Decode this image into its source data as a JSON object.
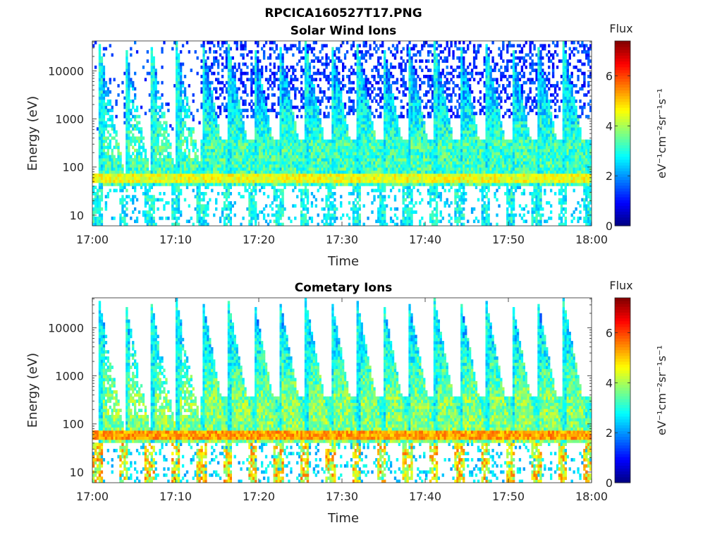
{
  "figure_title": "RPCICA160527T17.PNG",
  "chart_data": [
    {
      "type": "heatmap",
      "title": "Solar Wind Ions",
      "xlabel": "Time",
      "ylabel": "Energy (eV)",
      "x_ticks": [
        "17:00",
        "17:10",
        "17:20",
        "17:30",
        "17:40",
        "17:50",
        "18:00"
      ],
      "xlim": [
        "17:00",
        "18:00"
      ],
      "y_scale": "log",
      "y_ticks": [
        10,
        100,
        1000,
        10000
      ],
      "ylim": [
        6,
        42000
      ],
      "colorbar": {
        "label": "Flux",
        "units": "eV⁻¹cm⁻²sr⁻¹s⁻¹",
        "ticks": [
          0,
          2,
          4,
          6
        ],
        "range": [
          0,
          7.4
        ],
        "colormap": "jet"
      },
      "sweep_start_minutes": [
        0.7,
        3.8,
        6.9,
        10.0,
        13.1,
        16.2,
        19.3,
        22.4,
        25.5,
        28.6,
        31.7,
        34.8,
        37.9,
        41.0,
        44.1,
        47.2,
        50.3,
        53.4,
        56.5
      ],
      "peak_energy_eV": 60,
      "peak_flux": 4.8,
      "description_ranges": {
        "background_flux_high_energy": [
          1,
          2
        ],
        "sweep_flux": [
          2.5,
          4
        ]
      }
    },
    {
      "type": "heatmap",
      "title": "Cometary Ions",
      "xlabel": "Time",
      "ylabel": "Energy (eV)",
      "x_ticks": [
        "17:00",
        "17:10",
        "17:20",
        "17:30",
        "17:40",
        "17:50",
        "18:00"
      ],
      "xlim": [
        "17:00",
        "18:00"
      ],
      "y_scale": "log",
      "y_ticks": [
        10,
        100,
        1000,
        10000
      ],
      "ylim": [
        6,
        42000
      ],
      "colorbar": {
        "label": "Flux",
        "units": "eV⁻¹cm⁻²sr⁻¹s⁻¹",
        "ticks": [
          0,
          2,
          4,
          6
        ],
        "range": [
          0,
          7.4
        ],
        "colormap": "jet"
      },
      "sweep_start_minutes": [
        0.7,
        3.8,
        6.9,
        10.0,
        13.1,
        16.2,
        19.3,
        22.4,
        25.5,
        28.6,
        31.7,
        34.8,
        37.9,
        41.0,
        44.1,
        47.2,
        50.3,
        53.4,
        56.5
      ],
      "peak_energy_eV": 60,
      "peak_flux": 5.6,
      "description_ranges": {
        "background_flux_high_energy": [
          1,
          2
        ],
        "sweep_flux": [
          3,
          4.5
        ]
      }
    }
  ]
}
